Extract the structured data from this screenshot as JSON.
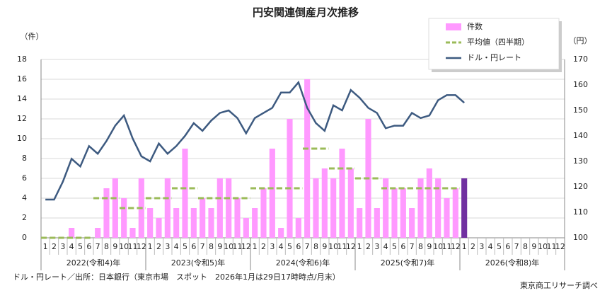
{
  "chart_data": {
    "type": "bar-line",
    "title": "円安関連倒産月次推移",
    "y_unit": "（件）",
    "y2_unit": "（円）",
    "categories": [
      "1",
      "2",
      "3",
      "4",
      "5",
      "6",
      "7",
      "8",
      "9",
      "10",
      "11",
      "12",
      "1",
      "2",
      "3",
      "4",
      "5",
      "6",
      "7",
      "8",
      "9",
      "10",
      "11",
      "12",
      "1",
      "2",
      "3",
      "4",
      "5",
      "6",
      "7",
      "8",
      "9",
      "10",
      "11",
      "12",
      "1",
      "2",
      "3",
      "4",
      "5",
      "6",
      "7",
      "8",
      "9",
      "10",
      "11",
      "12",
      "1",
      "2",
      "3",
      "4",
      "5",
      "6",
      "7",
      "8",
      "9",
      "10",
      "11",
      "12"
    ],
    "year_groups": [
      "2022(令和4)年",
      "2023(令和5)年",
      "2024(令和6)年",
      "2025(令和7)年",
      "2026(令和8)年"
    ],
    "ylim": [
      0,
      18
    ],
    "yticks": [
      0,
      2,
      4,
      6,
      8,
      10,
      12,
      14,
      16,
      18
    ],
    "y2lim": [
      100,
      170
    ],
    "y2ticks": [
      100,
      110,
      120,
      130,
      140,
      150,
      160,
      170
    ],
    "series": [
      {
        "name": "件数",
        "kind": "bar",
        "color": "#ff99ff",
        "highlight": {
          "index": 48,
          "color": "#7030a0"
        },
        "values": [
          0,
          0,
          0,
          1,
          0,
          0,
          1,
          5,
          6,
          4,
          1,
          6,
          3,
          2,
          6,
          3,
          9,
          3,
          4,
          3,
          6,
          6,
          4,
          2,
          3,
          5,
          9,
          1,
          12,
          2,
          16,
          6,
          7,
          6,
          9,
          7,
          3,
          12,
          3,
          6,
          5,
          5,
          3,
          6,
          7,
          6,
          4,
          5,
          6,
          null,
          null,
          null,
          null,
          null,
          null,
          null,
          null,
          null,
          null,
          null
        ]
      },
      {
        "name": "平均値（四半期）",
        "kind": "step",
        "color": "#9bbb59",
        "values": [
          0,
          0,
          0,
          0,
          0,
          0,
          4,
          4,
          4,
          3,
          3,
          3,
          4,
          4,
          4,
          5,
          5,
          5,
          4,
          4,
          4,
          4,
          4,
          4,
          5,
          5,
          5,
          5,
          5,
          5,
          9,
          9,
          9,
          7,
          7,
          7,
          6,
          6,
          6,
          5,
          5,
          5,
          5,
          5,
          5,
          5,
          5,
          5,
          null,
          null,
          null,
          null,
          null,
          null,
          null,
          null,
          null,
          null,
          null,
          null
        ]
      },
      {
        "name": "ドル・円レート",
        "kind": "line",
        "axis": "y2",
        "color": "#3d5a80",
        "values": [
          115,
          115,
          122,
          131,
          128,
          136,
          133,
          138,
          144,
          148,
          139,
          132,
          130,
          137,
          133,
          136,
          140,
          145,
          142,
          146,
          149,
          150,
          147,
          141,
          147,
          149,
          151,
          157,
          157,
          161,
          151,
          145,
          142,
          152,
          150,
          158,
          155,
          151,
          149,
          143,
          144,
          144,
          149,
          147,
          148,
          154,
          156,
          156,
          153,
          null,
          null,
          null,
          null,
          null,
          null,
          null,
          null,
          null,
          null,
          null
        ]
      }
    ],
    "footnote": "ドル・円レート／出所：日本銀行（東京市場　スポット　2026年1月は29日17時時点/月末）",
    "source": "東京商工リサーチ調べ"
  }
}
